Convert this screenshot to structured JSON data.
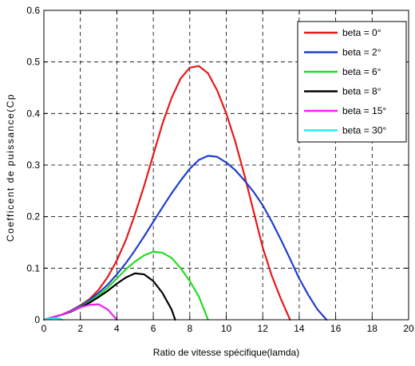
{
  "chart_data": {
    "type": "line",
    "title": "",
    "xlabel": "Ratio de vitesse spécifique(lamda)",
    "ylabel": "Coefficent de puissance(Cp",
    "xlim": [
      0,
      20
    ],
    "ylim": [
      0,
      0.6
    ],
    "xticks": [
      0,
      2,
      4,
      6,
      8,
      10,
      12,
      14,
      16,
      18,
      20
    ],
    "yticks": [
      0,
      0.1,
      0.2,
      0.3,
      0.4,
      0.5,
      0.6
    ],
    "xtick_labels": [
      "0",
      "2",
      "4",
      "6",
      "8",
      "10",
      "12",
      "14",
      "16",
      "18",
      "20"
    ],
    "ytick_labels": [
      "0",
      "0.1",
      "0.2",
      "0.3",
      "0.4",
      "0.5",
      "0.6"
    ],
    "grid": true,
    "grid_style": "dashed",
    "legend_position": "top-right",
    "series": [
      {
        "name": "beta = 0°",
        "color": "#e31a1c",
        "x": [
          0,
          0.5,
          1,
          1.5,
          2,
          2.5,
          3,
          3.5,
          4,
          4.5,
          5,
          5.5,
          6,
          6.5,
          7,
          7.5,
          8,
          8.5,
          9,
          9.5,
          10,
          10.5,
          11,
          11.5,
          12,
          12.5,
          13,
          13.5
        ],
        "y": [
          0,
          0.005,
          0.01,
          0.018,
          0.028,
          0.04,
          0.058,
          0.083,
          0.115,
          0.155,
          0.205,
          0.26,
          0.32,
          0.38,
          0.43,
          0.468,
          0.489,
          0.492,
          0.478,
          0.445,
          0.4,
          0.345,
          0.28,
          0.21,
          0.14,
          0.085,
          0.04,
          0
        ]
      },
      {
        "name": "beta = 2°",
        "color": "#1f3fcf",
        "x": [
          0,
          0.5,
          1,
          1.5,
          2,
          2.5,
          3,
          3.5,
          4,
          4.5,
          5,
          5.5,
          6,
          6.5,
          7,
          7.5,
          8,
          8.5,
          9,
          9.5,
          10,
          10.5,
          11,
          11.5,
          12,
          12.5,
          13,
          13.5,
          14,
          14.5,
          15,
          15.5
        ],
        "y": [
          0,
          0.005,
          0.01,
          0.018,
          0.027,
          0.038,
          0.052,
          0.068,
          0.088,
          0.11,
          0.135,
          0.162,
          0.19,
          0.218,
          0.245,
          0.27,
          0.293,
          0.31,
          0.318,
          0.316,
          0.305,
          0.29,
          0.27,
          0.248,
          0.222,
          0.19,
          0.155,
          0.118,
          0.08,
          0.048,
          0.02,
          0
        ]
      },
      {
        "name": "beta = 6°",
        "color": "#22dd22",
        "x": [
          0,
          0.5,
          1,
          1.5,
          2,
          2.5,
          3,
          3.5,
          4,
          4.5,
          5,
          5.5,
          6,
          6.5,
          7,
          7.5,
          8,
          8.5,
          9
        ],
        "y": [
          0,
          0.005,
          0.01,
          0.017,
          0.025,
          0.035,
          0.047,
          0.062,
          0.08,
          0.098,
          0.113,
          0.125,
          0.132,
          0.13,
          0.12,
          0.1,
          0.075,
          0.045,
          0
        ]
      },
      {
        "name": "beta = 8°",
        "color": "#000000",
        "x": [
          0,
          0.5,
          1,
          1.5,
          2,
          2.5,
          3,
          3.5,
          4,
          4.5,
          5,
          5.5,
          6,
          6.5,
          7,
          7.2
        ],
        "y": [
          0,
          0.005,
          0.01,
          0.016,
          0.024,
          0.033,
          0.044,
          0.056,
          0.07,
          0.082,
          0.09,
          0.088,
          0.075,
          0.052,
          0.02,
          0
        ]
      },
      {
        "name": "beta = 15°",
        "color": "#ee22ee",
        "x": [
          0,
          0.5,
          1,
          1.5,
          2,
          2.5,
          3,
          3.5,
          4
        ],
        "y": [
          0,
          0.005,
          0.01,
          0.017,
          0.024,
          0.029,
          0.03,
          0.02,
          0
        ]
      },
      {
        "name": "beta = 30°",
        "color": "#22eeee",
        "x": [
          0,
          0.3,
          0.6,
          0.9,
          1.0
        ],
        "y": [
          0,
          0.002,
          0.003,
          0.002,
          0
        ]
      }
    ]
  }
}
